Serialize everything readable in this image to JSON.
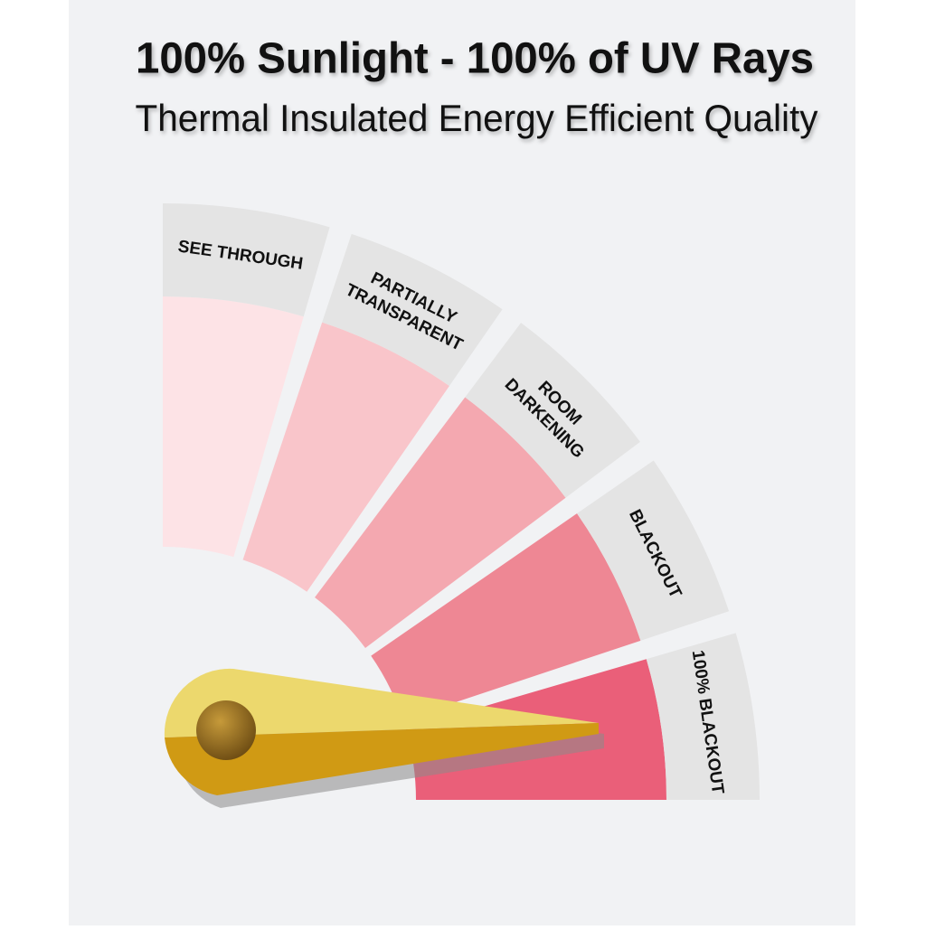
{
  "title": "100% Sunlight - 100% of UV Rays",
  "subtitle": "Thermal Insulated Energy Efficient Quality",
  "segments": [
    {
      "lines": [
        "SEE THROUGH"
      ],
      "color": "#fde3e6"
    },
    {
      "lines": [
        "PARTIALLY",
        "TRANSPARENT"
      ],
      "color": "#f9c5ca"
    },
    {
      "lines": [
        "ROOM",
        "DARKENING"
      ],
      "color": "#f4a8b0"
    },
    {
      "lines": [
        "BLACKOUT"
      ],
      "color": "#ee8794"
    },
    {
      "lines": [
        "100% BLACKOUT"
      ],
      "color": "#ea5f79"
    }
  ]
}
